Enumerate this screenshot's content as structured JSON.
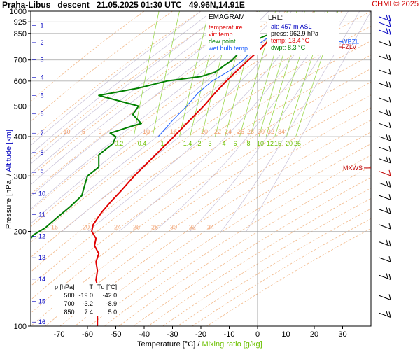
{
  "title": {
    "station": "Praha-Libus",
    "phase": "descent",
    "datetime": "21.05.2025 01:30 UTC",
    "coords": "49.96N,14.91E"
  },
  "credit": "CHMI © 2025",
  "legend": {
    "title": "EMAGRAM",
    "items": [
      {
        "label": "temperature",
        "color": "#e00000"
      },
      {
        "label": "virt.temp.",
        "color": "#e00000"
      },
      {
        "label": "dew point",
        "color": "#008000"
      },
      {
        "label": "wet bulb temp.",
        "color": "#2060ff"
      }
    ]
  },
  "lrl": {
    "title": "LRL:",
    "rows": [
      {
        "label": "alt: 457 m ASL",
        "color": "#0000c0"
      },
      {
        "label": "press: 962.9 hPa",
        "color": "#000000"
      },
      {
        "label": "temp: 13.4 °C",
        "color": "#e00000"
      },
      {
        "label": "dwpt: 8.3 °C",
        "color": "#008000"
      }
    ]
  },
  "ptable": {
    "headers": [
      "p [hPa]",
      "T",
      "Td [°C]"
    ],
    "rows": [
      [
        "500",
        "-19.0",
        "-42.0"
      ],
      [
        "700",
        "-3.2",
        "-8.9"
      ],
      [
        "850",
        "7.4",
        "5.0"
      ]
    ]
  },
  "axes": {
    "ylabel_pressure": "Pressure [hPa]",
    "ylabel_sep": "/",
    "ylabel_altitude": "Altitude [km]",
    "xlabel_temp": "Temperature [°C]",
    "xlabel_sep": "/",
    "xlabel_mix": "Mixing ratio [g/kg]"
  },
  "markers": {
    "mxws": "MXWS",
    "fzlv": "FZLV",
    "wbzl": "WBZL"
  },
  "chart_data": {
    "type": "line",
    "title": "EMAGRAM",
    "x_axis": {
      "label": "Temperature [°C]",
      "range": [
        -80,
        40
      ],
      "ticks": [
        -70,
        -60,
        -50,
        -40,
        -30,
        -20,
        -10,
        0,
        10,
        20,
        30
      ]
    },
    "y_axis": {
      "label": "Pressure [hPa]",
      "scale": "log",
      "range": [
        1000,
        100
      ],
      "ticks": [
        1000,
        925,
        850,
        700,
        600,
        500,
        400,
        300,
        200,
        100
      ]
    },
    "altitude_km_labels": [
      1,
      2,
      3,
      4,
      5,
      6,
      7,
      8,
      9,
      10,
      11,
      12,
      13,
      14,
      15,
      16
    ],
    "altitude_km_pressures": [
      900,
      795,
      701,
      616,
      540,
      472,
      410,
      356,
      308,
      264,
      226,
      193,
      165,
      141,
      120,
      103
    ],
    "isotherm_labels_200": [
      15,
      20,
      24,
      26,
      28,
      30,
      32,
      34
    ],
    "isotherm_labels_400": [
      -10,
      -5,
      9,
      10,
      16,
      20,
      22,
      24,
      26,
      28,
      30,
      32,
      34
    ],
    "mixing_ratio_labels": [
      0.2,
      0.4,
      1,
      1.4,
      2,
      3,
      4,
      6,
      8,
      10,
      12,
      15,
      20,
      25
    ],
    "series": [
      {
        "name": "temperature",
        "color": "#e00000",
        "points": [
          [
            962.9,
            13.4
          ],
          [
            925,
            11.5
          ],
          [
            900,
            10.0
          ],
          [
            850,
            7.4
          ],
          [
            800,
            3.5
          ],
          [
            750,
            0.5
          ],
          [
            700,
            -3.2
          ],
          [
            650,
            -7.0
          ],
          [
            600,
            -11.0
          ],
          [
            550,
            -15.0
          ],
          [
            500,
            -19.0
          ],
          [
            450,
            -24.0
          ],
          [
            400,
            -29.5
          ],
          [
            350,
            -36.0
          ],
          [
            300,
            -43.5
          ],
          [
            270,
            -48.0
          ],
          [
            250,
            -51.5
          ],
          [
            230,
            -55.0
          ],
          [
            210,
            -58.0
          ],
          [
            200,
            -58.5
          ],
          [
            190,
            -57.0
          ],
          [
            180,
            -57.5
          ],
          [
            170,
            -56.0
          ],
          [
            160,
            -57.0
          ],
          [
            150,
            -56.5
          ],
          [
            140,
            -57.0
          ],
          [
            130,
            -56.0
          ],
          [
            120,
            -57.0
          ],
          [
            110,
            -56.5
          ],
          [
            100,
            -56.5
          ]
        ]
      },
      {
        "name": "dew point",
        "color": "#008000",
        "points": [
          [
            962.9,
            8.3
          ],
          [
            925,
            6.5
          ],
          [
            900,
            5.8
          ],
          [
            850,
            5.0
          ],
          [
            830,
            2.0
          ],
          [
            800,
            -1.5
          ],
          [
            760,
            -5.0
          ],
          [
            730,
            -7.0
          ],
          [
            700,
            -8.9
          ],
          [
            670,
            -12.0
          ],
          [
            640,
            -15.0
          ],
          [
            620,
            -20.0
          ],
          [
            600,
            -32.0
          ],
          [
            570,
            -42.0
          ],
          [
            540,
            -56.0
          ],
          [
            500,
            -42.0
          ],
          [
            470,
            -44.0
          ],
          [
            440,
            -41.0
          ],
          [
            430,
            -45.0
          ],
          [
            410,
            -52.0
          ],
          [
            400,
            -50.0
          ],
          [
            380,
            -51.0
          ],
          [
            350,
            -56.0
          ],
          [
            320,
            -56.0
          ],
          [
            300,
            -60.0
          ],
          [
            280,
            -61.0
          ],
          [
            260,
            -62.0
          ],
          [
            240,
            -66.0
          ],
          [
            220,
            -71.0
          ],
          [
            205,
            -75.0
          ],
          [
            200,
            -77.0
          ],
          [
            195,
            -79.0
          ],
          [
            190,
            -80.0
          ]
        ]
      },
      {
        "name": "wet bulb temp.",
        "color": "#2060ff",
        "points": [
          [
            962.9,
            10.5
          ],
          [
            925,
            8.5
          ],
          [
            850,
            5.8
          ],
          [
            800,
            1.5
          ],
          [
            750,
            -2.0
          ],
          [
            700,
            -5.0
          ],
          [
            650,
            -9.5
          ],
          [
            600,
            -16.0
          ],
          [
            550,
            -21.0
          ],
          [
            500,
            -25.0
          ],
          [
            450,
            -30.0
          ],
          [
            400,
            -35.0
          ]
        ]
      }
    ]
  }
}
